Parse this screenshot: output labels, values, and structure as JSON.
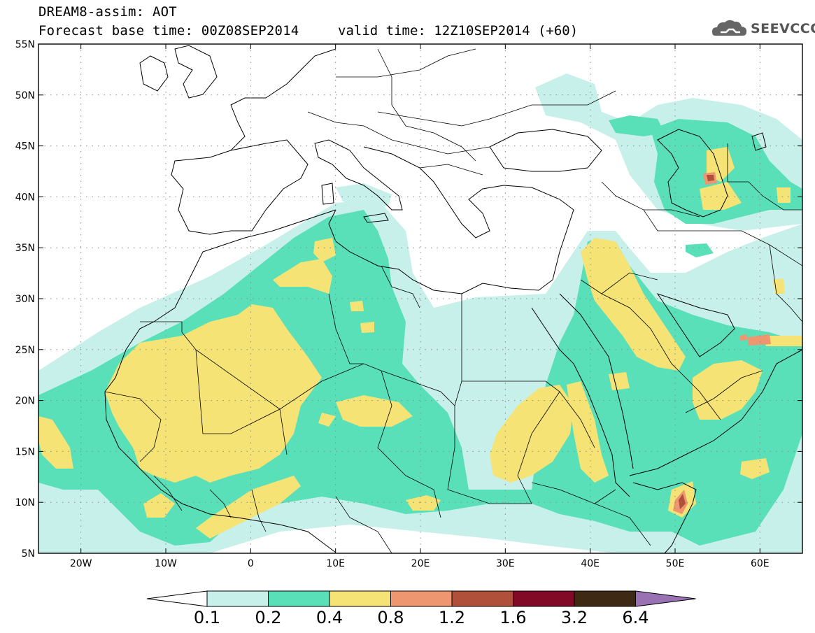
{
  "header": {
    "line1": "DREAM8-assim: AOT",
    "base_time": "Forecast base time: 00Z08SEP2014",
    "valid_time": "valid time: 12Z10SEP2014 (+60)",
    "logo_text": "SEEVCCC",
    "logo_icon": "cloud-icon"
  },
  "map_axes": {
    "lat_labels": [
      "55N",
      "50N",
      "45N",
      "40N",
      "35N",
      "30N",
      "25N",
      "20N",
      "15N",
      "10N",
      "5N"
    ],
    "lat_values": [
      55,
      50,
      45,
      40,
      35,
      30,
      25,
      20,
      15,
      10,
      5
    ],
    "lon_labels": [
      "20W",
      "10W",
      "0",
      "10E",
      "20E",
      "30E",
      "40E",
      "50E",
      "60E"
    ],
    "lon_values": [
      -20,
      -10,
      0,
      10,
      20,
      30,
      40,
      50,
      60
    ],
    "lon_range": [
      -25,
      65
    ],
    "lat_range": [
      5,
      55
    ],
    "grid": "dotted"
  },
  "colorbar": {
    "labels": [
      "0.1",
      "0.2",
      "0.4",
      "0.8",
      "1.2",
      "1.6",
      "3.2",
      "6.4"
    ],
    "colors": [
      "#c8f0ea",
      "#5ae0b8",
      "#f5e376",
      "#ee9670",
      "#b0503a",
      "#820a26",
      "#3e2a14"
    ],
    "under_color": "#ffffff",
    "over_color": "#9a72b4"
  },
  "legend_colors": {
    "c01": "#c8f0ea",
    "c02": "#5ae0b8",
    "c04": "#f5e376",
    "c08": "#ee9670",
    "c12": "#b0503a",
    "c16": "#820a26"
  }
}
